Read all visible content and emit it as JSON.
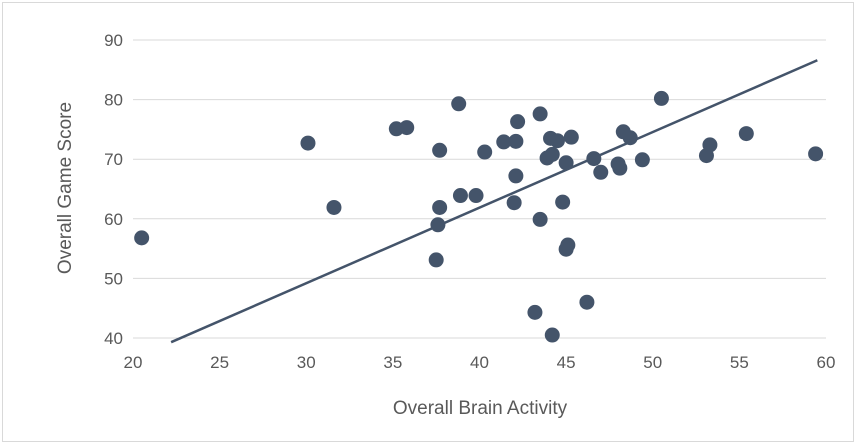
{
  "chart_data": {
    "type": "scatter",
    "xlabel": "Overall Brain Activity",
    "ylabel": "Overall Game Score",
    "xlim": [
      20,
      60
    ],
    "ylim": [
      40,
      90
    ],
    "x_ticks": [
      "20",
      "25",
      "30",
      "35",
      "40",
      "45",
      "50",
      "55",
      "60"
    ],
    "y_ticks": [
      "40",
      "50",
      "60",
      "70",
      "80",
      "90"
    ],
    "grid": "horizontal",
    "legend": "none",
    "colors": {
      "points": "#44546a",
      "trendline": "#44546a",
      "grid": "#d9d9d9",
      "text": "#595959"
    },
    "trendline": {
      "type": "linear",
      "x": [
        22.2,
        59.5
      ],
      "y": [
        39.3,
        86.6
      ]
    },
    "series": [
      {
        "points": [
          [
            20.5,
            56.8
          ],
          [
            30.1,
            72.7
          ],
          [
            31.6,
            61.9
          ],
          [
            35.2,
            75.1
          ],
          [
            35.8,
            75.3
          ],
          [
            37.5,
            53.1
          ],
          [
            37.6,
            59.0
          ],
          [
            37.7,
            61.9
          ],
          [
            37.7,
            71.5
          ],
          [
            38.8,
            79.3
          ],
          [
            38.9,
            63.9
          ],
          [
            39.8,
            63.9
          ],
          [
            40.3,
            71.2
          ],
          [
            41.4,
            72.9
          ],
          [
            42.0,
            62.7
          ],
          [
            42.1,
            73.0
          ],
          [
            42.2,
            76.3
          ],
          [
            42.1,
            67.2
          ],
          [
            43.2,
            44.3
          ],
          [
            43.5,
            59.9
          ],
          [
            43.5,
            77.6
          ],
          [
            43.9,
            70.2
          ],
          [
            44.1,
            73.5
          ],
          [
            44.2,
            40.5
          ],
          [
            44.2,
            70.8
          ],
          [
            44.5,
            73.1
          ],
          [
            44.8,
            62.8
          ],
          [
            45.0,
            54.9
          ],
          [
            45.1,
            55.6
          ],
          [
            45.0,
            69.4
          ],
          [
            45.3,
            73.7
          ],
          [
            46.2,
            46.0
          ],
          [
            46.6,
            70.1
          ],
          [
            47.0,
            67.8
          ],
          [
            48.0,
            69.2
          ],
          [
            48.1,
            68.5
          ],
          [
            48.3,
            74.6
          ],
          [
            48.7,
            73.6
          ],
          [
            49.4,
            69.9
          ],
          [
            50.5,
            80.2
          ],
          [
            53.1,
            70.6
          ],
          [
            53.3,
            72.4
          ],
          [
            55.4,
            74.3
          ],
          [
            59.4,
            70.9
          ]
        ]
      }
    ]
  }
}
